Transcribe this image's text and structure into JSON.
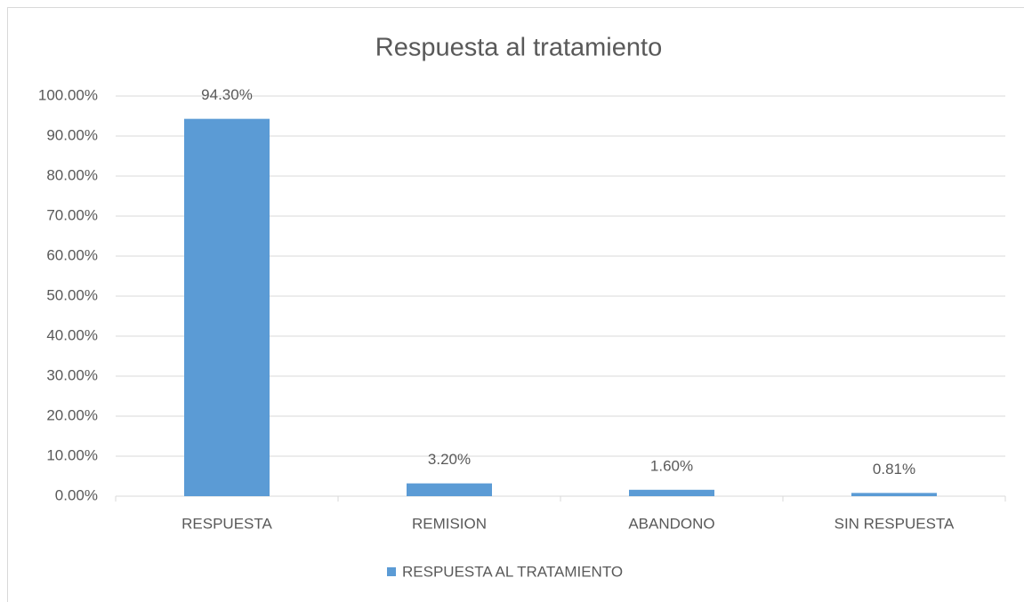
{
  "chart_data": {
    "type": "bar",
    "title": "Respuesta al tratamiento",
    "categories": [
      "RESPUESTA",
      "REMISION",
      "ABANDONO",
      "SIN RESPUESTA"
    ],
    "series": [
      {
        "name": "RESPUESTA AL TRATAMIENTO",
        "color": "#5b9bd5",
        "values": [
          94.3,
          3.2,
          1.6,
          0.81
        ],
        "value_labels": [
          "94.30%",
          "3.20%",
          "1.60%",
          "0.81%"
        ]
      }
    ],
    "ylim": [
      0,
      100
    ],
    "yticks": [
      {
        "value": 0,
        "label": "0.00%"
      },
      {
        "value": 10,
        "label": "10.00%"
      },
      {
        "value": 20,
        "label": "20.00%"
      },
      {
        "value": 30,
        "label": "30.00%"
      },
      {
        "value": 40,
        "label": "40.00%"
      },
      {
        "value": 50,
        "label": "50.00%"
      },
      {
        "value": 60,
        "label": "60.00%"
      },
      {
        "value": 70,
        "label": "70.00%"
      },
      {
        "value": 80,
        "label": "80.00%"
      },
      {
        "value": 90,
        "label": "90.00%"
      },
      {
        "value": 100,
        "label": "100.00%"
      }
    ],
    "grid": true,
    "legend": "bottom"
  }
}
